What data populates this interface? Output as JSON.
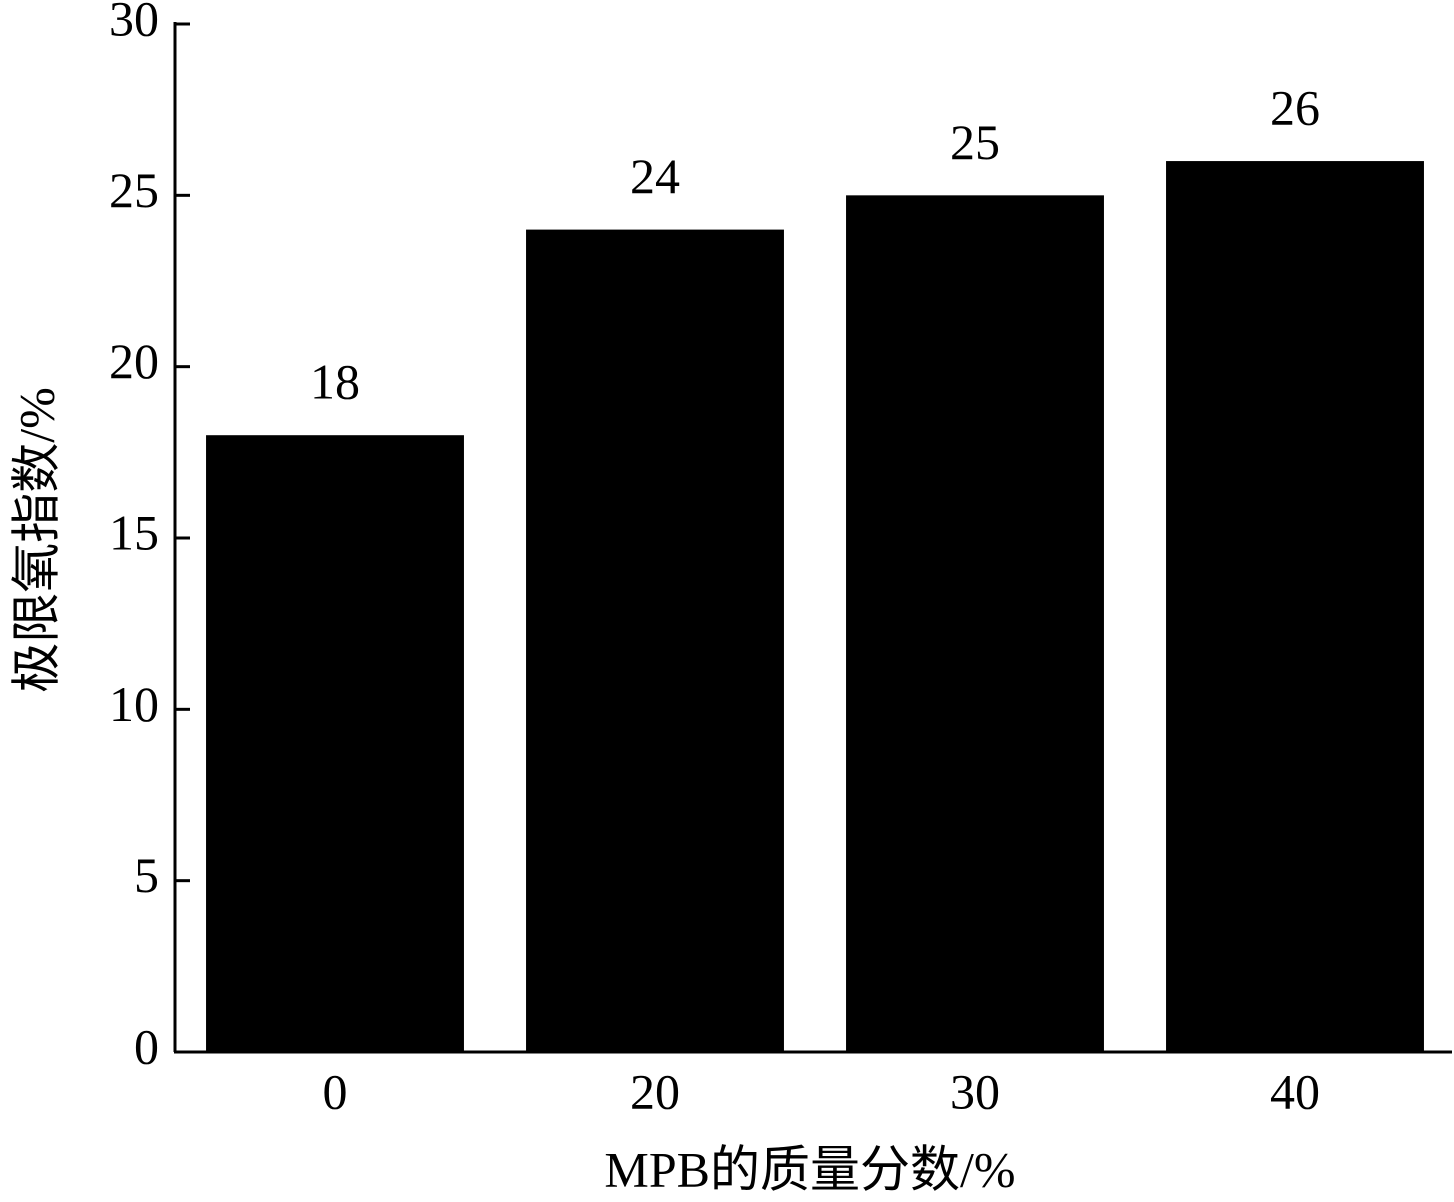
{
  "chart_data": {
    "type": "bar",
    "x_label": "MPB的质量分数/%",
    "y_label": "极限氧指数/%",
    "categories": [
      "0",
      "20",
      "30",
      "40"
    ],
    "values": [
      18,
      24,
      25,
      26
    ],
    "color": "#000000",
    "ylim": [
      0,
      30
    ],
    "yticks": [
      0,
      5,
      10,
      15,
      20,
      25,
      30
    ],
    "grid": false
  }
}
